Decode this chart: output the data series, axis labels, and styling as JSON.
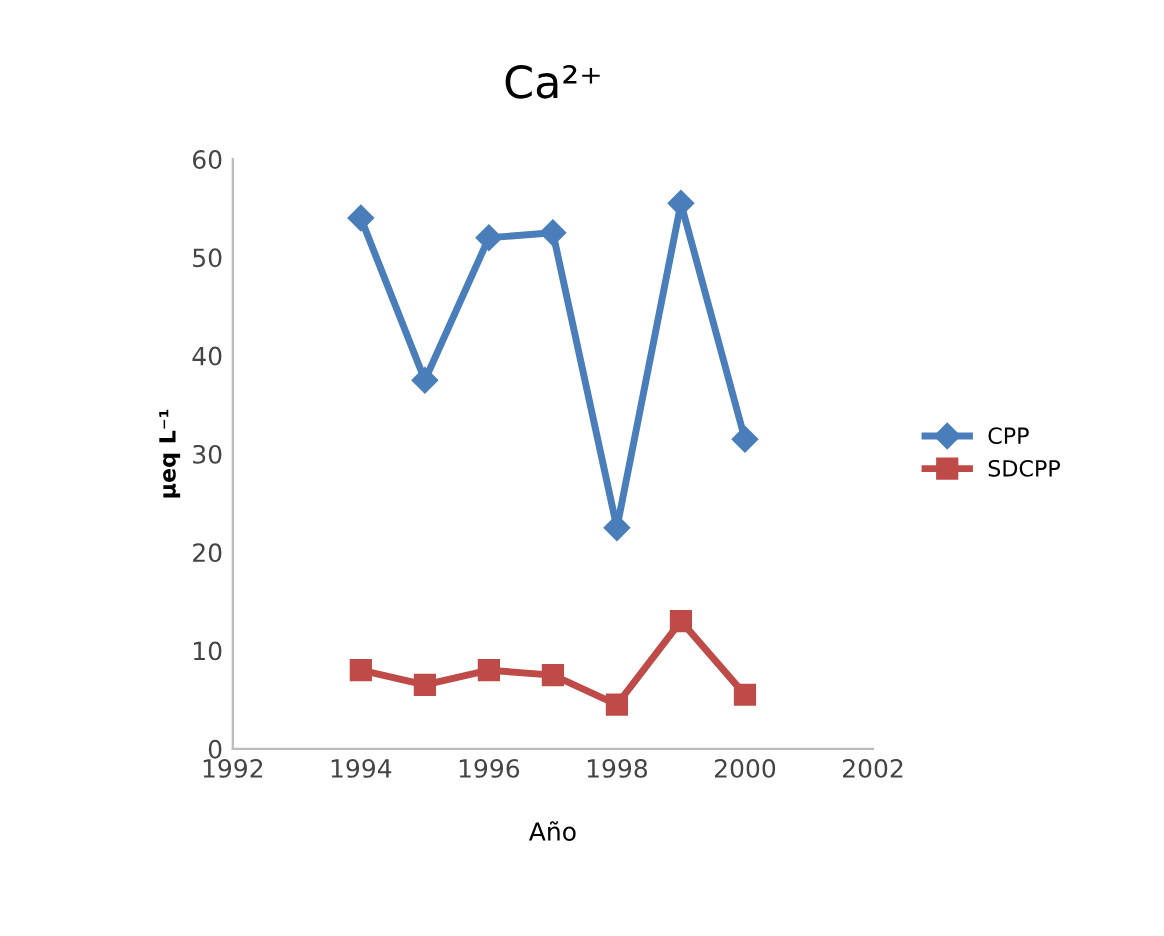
{
  "chart_data": {
    "type": "line",
    "title": "Ca²⁺",
    "xlabel": "Año",
    "ylabel": "µeq L⁻¹",
    "x": [
      1994,
      1995,
      1996,
      1997,
      1998,
      1999,
      2000
    ],
    "series": [
      {
        "name": "CPP",
        "color": "#4a7ebb",
        "marker": "diamond",
        "values": [
          54,
          37.5,
          52,
          52.5,
          22.5,
          55.5,
          31.5
        ]
      },
      {
        "name": "SDCPP",
        "color": "#be4b48",
        "marker": "square",
        "values": [
          8,
          6.5,
          8,
          7.5,
          4.5,
          13,
          5.5
        ]
      }
    ],
    "xlim": [
      1992,
      2002
    ],
    "xticks": [
      1992,
      1994,
      1996,
      1998,
      2000,
      2002
    ],
    "ylim": [
      0,
      60
    ],
    "yticks": [
      0,
      10,
      20,
      30,
      40,
      50,
      60
    ],
    "grid": false,
    "legend": "right",
    "line_style": "solid"
  }
}
